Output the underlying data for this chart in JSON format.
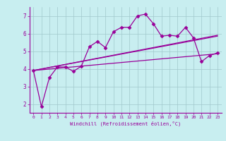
{
  "title": "",
  "xlabel": "Windchill (Refroidissement éolien,°C)",
  "ylabel": "",
  "background_color": "#c8eef0",
  "grid_color": "#a0c8cc",
  "line_color": "#990099",
  "xlim": [
    -0.5,
    23.5
  ],
  "ylim": [
    1.5,
    7.5
  ],
  "xticks": [
    0,
    1,
    2,
    3,
    4,
    5,
    6,
    7,
    8,
    9,
    10,
    11,
    12,
    13,
    14,
    15,
    16,
    17,
    18,
    19,
    20,
    21,
    22,
    23
  ],
  "yticks": [
    2,
    3,
    4,
    5,
    6,
    7
  ],
  "series": [
    {
      "x": [
        0,
        1,
        2,
        3,
        4,
        5,
        6,
        7,
        8,
        9,
        10,
        11,
        12,
        13,
        14,
        15,
        16,
        17,
        18,
        19,
        20,
        21,
        22,
        23
      ],
      "y": [
        3.9,
        1.85,
        3.5,
        4.1,
        4.1,
        3.85,
        4.15,
        5.25,
        5.55,
        5.2,
        6.1,
        6.35,
        6.35,
        7.0,
        7.1,
        6.55,
        5.85,
        5.9,
        5.85,
        6.35,
        5.75,
        4.4,
        4.75,
        4.9
      ],
      "marker": "D",
      "markersize": 2.5,
      "linewidth": 0.9
    },
    {
      "x": [
        0,
        23
      ],
      "y": [
        3.9,
        4.85
      ],
      "marker": null,
      "linewidth": 0.9
    },
    {
      "x": [
        0,
        23
      ],
      "y": [
        3.9,
        5.85
      ],
      "marker": null,
      "linewidth": 0.9
    },
    {
      "x": [
        0,
        23
      ],
      "y": [
        3.9,
        5.9
      ],
      "marker": null,
      "linewidth": 0.9
    }
  ]
}
